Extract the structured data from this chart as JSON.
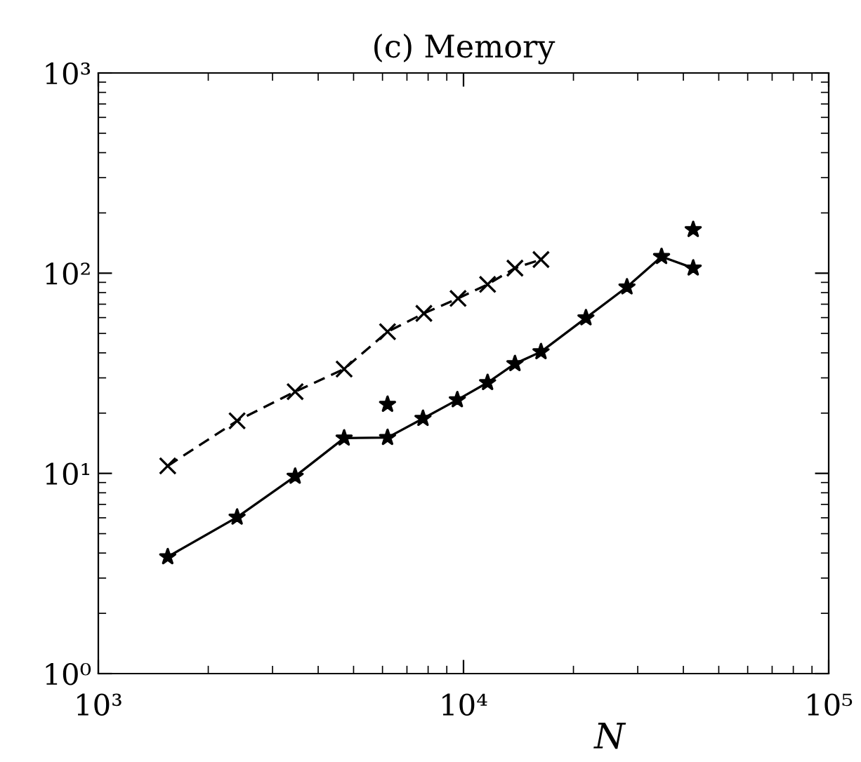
{
  "chart_data": {
    "type": "line",
    "title": "(c) Memory",
    "xlabel": "N",
    "log": "xy",
    "grid": false,
    "legend": false,
    "xlim": [
      1000,
      100000
    ],
    "xticks": [
      {
        "value": 1000,
        "label": "10³"
      },
      {
        "value": 10000,
        "label": "10⁴"
      },
      {
        "value": 100000,
        "label": "10⁵"
      }
    ],
    "ylim": [
      1,
      1000
    ],
    "yticks": [
      {
        "value": 1,
        "label": "10⁰"
      },
      {
        "value": 10,
        "label": "10¹"
      },
      {
        "value": 100,
        "label": "10²"
      },
      {
        "value": 1000,
        "label": "10³"
      }
    ],
    "series": [
      {
        "color": "#000000",
        "marker": "star",
        "line_style": "solid",
        "x": [
          1549,
          2399,
          3459,
          4711,
          6194,
          7745,
          9617,
          11640,
          13830,
          16300,
          21640,
          28030,
          34860,
          42560
        ],
        "values": [
          3.83,
          6.04,
          9.67,
          15.0,
          15.1,
          18.8,
          23.3,
          28.4,
          35.3,
          40.5,
          59.8,
          85.3,
          121,
          106
        ]
      },
      {
        "color": "#000000",
        "marker": "cross",
        "line_style": "dashed",
        "x": [
          1549,
          2399,
          3459,
          4711,
          6194,
          7790,
          9662,
          11640,
          13830,
          16300
        ],
        "values": [
          10.9,
          18.3,
          25.6,
          33.2,
          51.0,
          63.0,
          74.8,
          87.9,
          106,
          117
        ]
      },
      {
        "type": "scatter",
        "color": "#000000",
        "marker": "star",
        "x": [
          6194,
          42560
        ],
        "values": [
          22.1,
          165
        ]
      }
    ]
  }
}
